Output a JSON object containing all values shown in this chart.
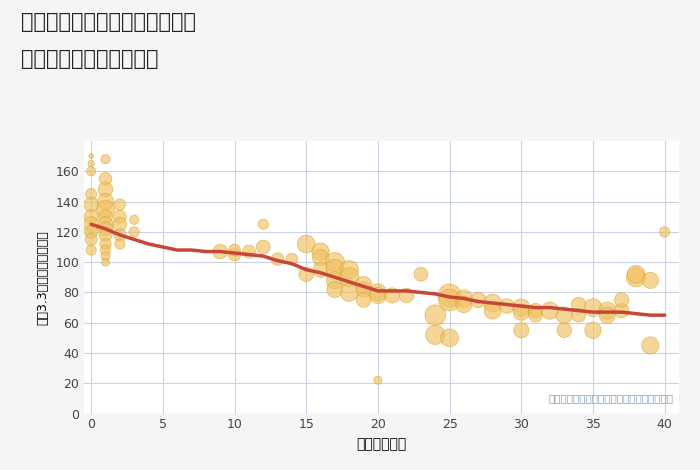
{
  "title_line1": "神奈川県横浜市金沢区高舟台の",
  "title_line2": "築年数別中古戸建て価格",
  "xlabel": "築年数（年）",
  "ylabel": "坪（3.3㎡）単価（万円）",
  "annotation": "円の大きさは、取引のあった物件面積を示す",
  "background_color": "#f5f5f5",
  "plot_bg_color": "#ffffff",
  "bubble_color": "#f0c060",
  "bubble_alpha": 0.65,
  "bubble_edge_color": "#d4a020",
  "line_color": "#c8453a",
  "line_width": 2.5,
  "grid_color": "#c8d4e4",
  "xlim": [
    -0.5,
    41
  ],
  "ylim": [
    0,
    180
  ],
  "yticks": [
    0,
    20,
    40,
    60,
    80,
    100,
    120,
    140,
    160
  ],
  "xticks": [
    0,
    5,
    10,
    15,
    20,
    25,
    30,
    35,
    40
  ],
  "scatter_x": [
    0,
    0,
    0,
    0,
    0,
    0,
    0,
    0,
    0,
    0,
    1,
    1,
    1,
    1,
    1,
    1,
    1,
    1,
    1,
    1,
    1,
    1,
    1,
    2,
    2,
    2,
    2,
    2,
    3,
    3,
    9,
    10,
    10,
    11,
    12,
    12,
    13,
    14,
    15,
    15,
    16,
    16,
    16,
    17,
    17,
    17,
    17,
    18,
    18,
    18,
    19,
    19,
    19,
    20,
    20,
    20,
    21,
    22,
    23,
    24,
    24,
    25,
    25,
    25,
    26,
    26,
    27,
    28,
    28,
    29,
    30,
    30,
    30,
    31,
    31,
    32,
    33,
    33,
    34,
    34,
    35,
    35,
    36,
    36,
    37,
    37,
    38,
    38,
    39,
    39,
    40
  ],
  "scatter_y": [
    170,
    165,
    160,
    145,
    138,
    130,
    125,
    120,
    115,
    108,
    168,
    155,
    148,
    140,
    135,
    130,
    125,
    122,
    118,
    112,
    108,
    104,
    100,
    138,
    130,
    125,
    118,
    112,
    128,
    120,
    107,
    105,
    108,
    107,
    110,
    125,
    102,
    102,
    112,
    92,
    107,
    103,
    95,
    100,
    96,
    88,
    82,
    95,
    90,
    80,
    85,
    82,
    75,
    80,
    78,
    22,
    78,
    78,
    92,
    65,
    52,
    78,
    75,
    50,
    76,
    72,
    75,
    73,
    68,
    71,
    70,
    67,
    55,
    68,
    65,
    68,
    65,
    55,
    72,
    65,
    70,
    55,
    68,
    65,
    68,
    75,
    90,
    92,
    88,
    45,
    120
  ],
  "scatter_size": [
    20,
    40,
    80,
    120,
    200,
    180,
    220,
    160,
    140,
    100,
    80,
    150,
    200,
    250,
    300,
    180,
    220,
    200,
    160,
    120,
    100,
    80,
    60,
    120,
    160,
    180,
    140,
    100,
    80,
    100,
    200,
    150,
    130,
    160,
    180,
    100,
    150,
    130,
    300,
    200,
    280,
    250,
    220,
    350,
    300,
    280,
    250,
    320,
    350,
    300,
    260,
    220,
    200,
    280,
    250,
    60,
    220,
    200,
    180,
    400,
    350,
    500,
    450,
    300,
    280,
    250,
    220,
    300,
    270,
    200,
    280,
    250,
    220,
    200,
    180,
    280,
    250,
    200,
    200,
    180,
    300,
    250,
    280,
    250,
    200,
    200,
    350,
    300,
    250,
    280,
    100
  ],
  "line_x": [
    0,
    1,
    2,
    3,
    4,
    5,
    6,
    7,
    8,
    9,
    10,
    11,
    12,
    13,
    14,
    15,
    16,
    17,
    18,
    19,
    20,
    21,
    22,
    23,
    24,
    25,
    26,
    27,
    28,
    29,
    30,
    31,
    32,
    33,
    34,
    35,
    36,
    37,
    38,
    39,
    40
  ],
  "line_y": [
    125,
    122,
    118,
    115,
    112,
    110,
    108,
    108,
    107,
    107,
    106,
    105,
    104,
    101,
    99,
    95,
    93,
    90,
    87,
    84,
    81,
    81,
    81,
    80,
    79,
    77,
    76,
    74,
    73,
    72,
    71,
    70,
    70,
    69,
    68,
    67,
    67,
    67,
    66,
    65,
    65
  ]
}
